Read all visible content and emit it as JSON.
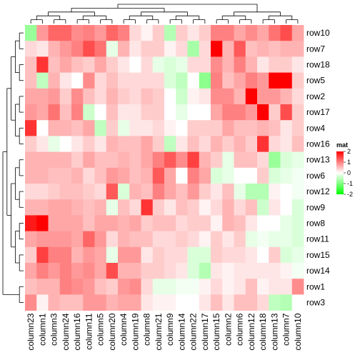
{
  "chart_data": {
    "type": "heatmap",
    "title": "",
    "columns": [
      "column23",
      "column1",
      "column3",
      "column24",
      "column16",
      "column11",
      "column5",
      "column20",
      "column4",
      "column19",
      "column8",
      "column21",
      "column9",
      "column14",
      "column22",
      "column17",
      "column15",
      "column2",
      "column6",
      "column12",
      "column18",
      "column13",
      "column7",
      "column10"
    ],
    "rows": [
      "row10",
      "row7",
      "row18",
      "row5",
      "row2",
      "row17",
      "row4",
      "row16",
      "row13",
      "row6",
      "row12",
      "row9",
      "row8",
      "row11",
      "row15",
      "row14",
      "row1",
      "row3"
    ],
    "values": [
      [
        -0.8,
        0.8,
        1.2,
        1.2,
        0.9,
        1.0,
        0.8,
        1.2,
        1.0,
        0.3,
        0.1,
        0.4,
        -0.6,
        0.4,
        0.2,
        0.4,
        1.0,
        1.0,
        0.7,
        0.9,
        0.7,
        1.1,
        1.4,
        0.7
      ],
      [
        0.3,
        0.2,
        0.6,
        0.8,
        1.0,
        1.4,
        1.1,
        -0.2,
        0.6,
        0.2,
        0.4,
        0.4,
        0.1,
        0.3,
        -0.7,
        0.3,
        2.5,
        0.6,
        1.3,
        0.5,
        0.6,
        0.5,
        0.6,
        0.6
      ],
      [
        0.5,
        1.6,
        0.5,
        0.7,
        0.5,
        0.4,
        0.7,
        0.4,
        0.2,
        0.0,
        0.3,
        -0.2,
        -0.3,
        -0.2,
        0.3,
        0.3,
        0.9,
        0.6,
        1.0,
        0.6,
        0.2,
        0.4,
        0.4,
        0.2
      ],
      [
        0.5,
        -0.5,
        0.6,
        0.2,
        0.0,
        0.9,
        0.3,
        0.5,
        0.3,
        0.3,
        0.3,
        0.3,
        -0.3,
        -0.5,
        0.0,
        -0.9,
        1.0,
        0.5,
        0.7,
        1.0,
        0.8,
        2.5,
        2.5,
        0.4
      ],
      [
        0.7,
        0.7,
        0.8,
        0.4,
        0.9,
        0.5,
        0.3,
        0.6,
        0.4,
        0.3,
        0.5,
        0.4,
        0.0,
        -0.4,
        0.1,
        0.2,
        0.9,
        0.9,
        0.6,
        2.5,
        0.8,
        0.8,
        0.6,
        0.3
      ],
      [
        0.8,
        0.7,
        1.1,
        0.5,
        1.0,
        -0.4,
        0.0,
        0.5,
        0.2,
        0.2,
        0.4,
        0.4,
        0.0,
        -0.2,
        0.0,
        0.0,
        0.7,
        1.0,
        1.0,
        0.8,
        2.5,
        0.4,
        1.4,
        0.4
      ],
      [
        1.6,
        0.0,
        0.6,
        0.6,
        0.5,
        0.7,
        -0.5,
        0.4,
        -0.2,
        0.2,
        0.2,
        0.3,
        0.1,
        0.0,
        0.4,
        0.4,
        0.4,
        0.7,
        0.5,
        0.5,
        0.6,
        0.5,
        0.2,
        0.4
      ],
      [
        0.4,
        0.2,
        -0.2,
        0.0,
        0.2,
        0.4,
        0.2,
        0.6,
        0.5,
        0.5,
        0.7,
        0.4,
        -0.5,
        0.2,
        0.5,
        0.3,
        0.6,
        0.4,
        0.6,
        0.4,
        1.6,
        0.3,
        0.2,
        0.5
      ],
      [
        0.6,
        0.6,
        0.6,
        0.6,
        0.4,
        0.7,
        0.5,
        0.5,
        0.6,
        0.5,
        0.7,
        1.0,
        1.3,
        0.9,
        1.5,
        0.6,
        0.4,
        -0.2,
        0.5,
        0.5,
        0.3,
        -0.8,
        -0.3,
        -0.2
      ],
      [
        0.6,
        0.6,
        0.5,
        0.5,
        0.6,
        0.3,
        0.5,
        0.8,
        0.7,
        0.5,
        0.6,
        1.3,
        0.7,
        0.0,
        1.0,
        0.7,
        -0.3,
        -0.2,
        0.0,
        0.0,
        0.4,
        -0.3,
        -0.2,
        -0.1
      ],
      [
        0.3,
        0.3,
        0.4,
        0.5,
        0.5,
        0.4,
        0.3,
        1.3,
        -0.3,
        0.6,
        0.5,
        1.0,
        0.7,
        0.5,
        0.8,
        0.4,
        0.2,
        0.5,
        -0.2,
        -0.6,
        -0.6,
        0.1,
        0.0,
        -0.1
      ],
      [
        0.6,
        0.6,
        0.7,
        0.7,
        0.6,
        0.5,
        0.6,
        -0.2,
        0.5,
        0.3,
        1.6,
        0.4,
        0.2,
        0.5,
        0.4,
        0.1,
        0.3,
        0.6,
        0.3,
        0.5,
        -0.4,
        0.2,
        0.0,
        -0.3
      ],
      [
        1.8,
        2.5,
        0.7,
        0.7,
        0.7,
        0.5,
        0.7,
        0.7,
        0.6,
        0.7,
        0.4,
        0.5,
        0.5,
        0.3,
        0.4,
        0.4,
        0.1,
        0.6,
        0.5,
        0.2,
        0.0,
        0.0,
        -0.2,
        -0.3
      ],
      [
        0.7,
        0.8,
        0.8,
        0.8,
        0.7,
        1.2,
        0.8,
        0.3,
        0.6,
        0.5,
        0.5,
        0.3,
        0.3,
        0.4,
        0.3,
        0.1,
        0.4,
        0.2,
        0.4,
        -0.2,
        -0.1,
        -0.2,
        -0.2,
        -0.3
      ],
      [
        0.4,
        1.5,
        1.0,
        1.0,
        0.6,
        0.8,
        0.7,
        -0.2,
        0.8,
        0.8,
        0.2,
        0.4,
        0.3,
        0.3,
        -0.3,
        -0.3,
        0.4,
        0.3,
        0.3,
        0.2,
        0.0,
        0.4,
        -0.3,
        -0.2
      ],
      [
        0.7,
        1.0,
        0.8,
        1.0,
        0.8,
        0.9,
        0.7,
        1.4,
        0.6,
        0.6,
        0.4,
        0.4,
        0.3,
        0.2,
        -0.3,
        -0.6,
        0.2,
        0.1,
        0.2,
        0.2,
        0.2,
        0.2,
        0.1,
        -0.1
      ],
      [
        0.5,
        0.6,
        0.6,
        1.0,
        0.9,
        0.8,
        0.5,
        0.4,
        0.8,
        0.9,
        0.3,
        -0.2,
        -0.2,
        -0.1,
        -0.1,
        0.1,
        0.3,
        0.1,
        0.2,
        0.5,
        0.1,
        0.2,
        0.2,
        0.9
      ],
      [
        0.9,
        0.1,
        0.6,
        0.5,
        0.5,
        0.8,
        0.8,
        0.6,
        0.7,
        0.7,
        0.2,
        0.1,
        0.1,
        0.0,
        0.0,
        0.2,
        0.5,
        0.2,
        0.5,
        0.5,
        0.3,
        -0.5,
        -0.6,
        0.0
      ]
    ],
    "colorscale": {
      "low": "#00ff00",
      "mid": "#ffffff",
      "high": "#ff0000",
      "range": [
        -2,
        2
      ]
    },
    "legend": {
      "title": "mat",
      "ticks": [
        2,
        1,
        0,
        -1,
        -2
      ],
      "position": "right"
    },
    "row_dendrogram": true,
    "column_dendrogram": true,
    "grid": false
  }
}
